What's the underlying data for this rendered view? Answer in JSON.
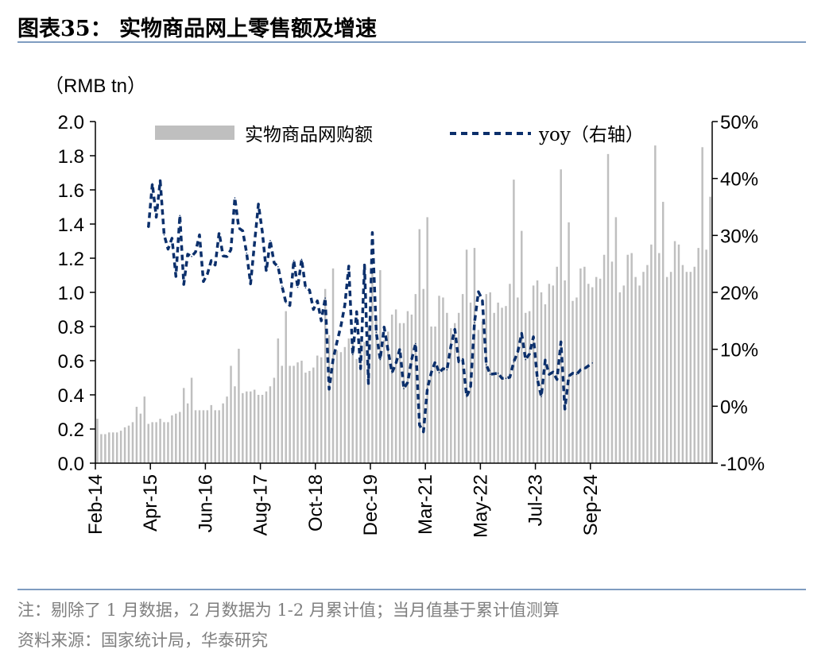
{
  "header": {
    "title": "图表35： 实物商品网上零售额及增速"
  },
  "footer": {
    "note": "注：剔除了 1 月数据，2 月数据为 1-2 月累计值；当月值基于累计值测算",
    "source": "资料来源：国家统计局，华泰研究"
  },
  "chart_data": {
    "type": "bar",
    "unit_label": "（RMB tn）",
    "y_left": {
      "min": 0,
      "max": 2.0,
      "ticks": [
        "0.0",
        "0.2",
        "0.4",
        "0.6",
        "0.8",
        "1.0",
        "1.2",
        "1.4",
        "1.6",
        "1.8",
        "2.0"
      ]
    },
    "y_right": {
      "min": -10,
      "max": 50,
      "ticks": [
        "-10%",
        "0%",
        "10%",
        "20%",
        "30%",
        "40%",
        "50%"
      ]
    },
    "x_ticks": [
      "Feb-14",
      "Apr-15",
      "Jun-16",
      "Aug-17",
      "Oct-18",
      "Dec-19",
      "Mar-21",
      "May-22",
      "Jul-23",
      "Sep-24"
    ],
    "legend": {
      "bar": "实物商品网购额",
      "line": "yoy（右轴）",
      "position": "top"
    },
    "colors": {
      "bar": "#bfbfbf",
      "line": "#0b2f6b",
      "axis": "#000000"
    },
    "series": [
      {
        "name": "实物商品网购额",
        "type": "bar",
        "axis": "left",
        "values": [
          0.26,
          0.17,
          0.17,
          0.18,
          0.18,
          0.18,
          0.19,
          0.21,
          0.22,
          0.24,
          0.33,
          0.29,
          0.39,
          0.23,
          0.24,
          0.24,
          0.26,
          0.24,
          0.24,
          0.28,
          0.29,
          0.3,
          0.44,
          0.35,
          0.5,
          0.31,
          0.31,
          0.31,
          0.31,
          0.34,
          0.31,
          0.31,
          0.35,
          0.39,
          0.57,
          0.45,
          0.67,
          0.41,
          0.42,
          0.42,
          0.43,
          0.4,
          0.4,
          0.42,
          0.45,
          0.5,
          0.73,
          0.57,
          0.89,
          0.57,
          0.57,
          0.59,
          0.6,
          0.53,
          0.54,
          0.56,
          0.63,
          0.62,
          1.02,
          0.75,
          1.14,
          0.66,
          0.65,
          0.68,
          0.73,
          0.71,
          0.61,
          0.71,
          0.71,
          0.8,
          1.14,
          0.84,
          1.13,
          0.72,
          0.77,
          0.87,
          0.9,
          0.82,
          0.82,
          0.89,
          0.87,
          0.99,
          1.37,
          1.02,
          1.44,
          0.8,
          0.8,
          0.98,
          0.97,
          0.88,
          0.79,
          0.82,
          0.88,
          0.99,
          1.25,
          0.94,
          1.26,
          0.78,
          0.83,
          0.99,
          1.0,
          0.88,
          0.94,
          0.91,
          0.92,
          1.05,
          1.66,
          0.97,
          1.36,
          0.88,
          0.89,
          1.04,
          1.07,
          1.0,
          0.93,
          1.05,
          1.04,
          1.15,
          1.72,
          1.07,
          1.41,
          0.95,
          0.97,
          1.14,
          1.15,
          1.05,
          1.03,
          1.09,
          1.08,
          1.22,
          1.81,
          1.18,
          1.44,
          1.0,
          1.04,
          1.22,
          1.23,
          1.09,
          1.04,
          1.12,
          1.16,
          1.28,
          1.86,
          1.23,
          1.53,
          1.09,
          1.12,
          1.3,
          1.28,
          1.16,
          1.12,
          1.12,
          1.15,
          1.26,
          1.85,
          1.25,
          1.56
        ]
      },
      {
        "name": "yoy（右轴）",
        "type": "line",
        "axis": "right",
        "values": [
          null,
          null,
          null,
          null,
          null,
          null,
          null,
          null,
          null,
          null,
          null,
          null,
          null,
          31.4,
          39.1,
          33.2,
          39.6,
          30.1,
          27.6,
          29.5,
          22.8,
          33.5,
          21.4,
          26.7,
          26.3,
          27.1,
          30.1,
          21.9,
          23.2,
          25.6,
          24.8,
          30.5,
          26.4,
          26.3,
          27.5,
          36.6,
          31.3,
          30.8,
          26.9,
          21.5,
          28.6,
          35.5,
          30.6,
          23.7,
          29.1,
          25.2,
          24.5,
          21.1,
          18.2,
          17.7,
          25.6,
          20.9,
          25.8,
          20.8,
          20.4,
          17.0,
          18.5,
          15.0,
          19.0,
          3.0,
          8.2,
          11.3,
          14.1,
          17.8,
          24.6,
          9.1,
          16.6,
          6.6,
          24.8,
          4.0,
          30.5,
          13.0,
          8.2,
          13.9,
          9.8,
          5.9,
          7.5,
          10.1,
          3.1,
          4.2,
          8.2,
          11.0,
          -3.3,
          -4.5,
          3.1,
          5.9,
          7.8,
          5.9,
          6.6,
          6.4,
          10.6,
          13.5,
          7.8,
          8.2,
          1.7,
          3.3,
          14.7,
          20.1,
          18.7,
          7.3,
          5.6,
          5.7,
          5.8,
          4.9,
          4.9,
          5.1,
          7.8,
          9.5,
          12.8,
          8.2,
          9.2,
          12.2,
          4.8,
          1.7,
          8.1,
          5.6,
          6.0,
          4.7,
          11.3,
          -0.5,
          5.3,
          5.8,
          5.6,
          6.4,
          6.6,
          7.1,
          7.6,
          null,
          null,
          null,
          null,
          null,
          null,
          null,
          null,
          null,
          null,
          null,
          null,
          null,
          null,
          null,
          null,
          null,
          null,
          null,
          null,
          null,
          null,
          null,
          null,
          null,
          null,
          null,
          null,
          null,
          null,
          null,
          null,
          null,
          null,
          null,
          null,
          null,
          null,
          null,
          null,
          null,
          null
        ]
      }
    ]
  }
}
